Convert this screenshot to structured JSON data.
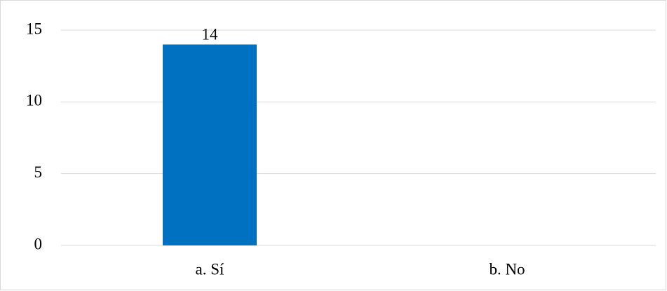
{
  "chart_data": {
    "type": "bar",
    "categories": [
      "a. Sí",
      "b. No"
    ],
    "values": [
      14,
      null
    ],
    "color": "#0070c0",
    "ylim": [
      0,
      15
    ],
    "yticks": [
      0,
      5,
      10,
      15
    ],
    "grid": true,
    "data_labels": true
  }
}
